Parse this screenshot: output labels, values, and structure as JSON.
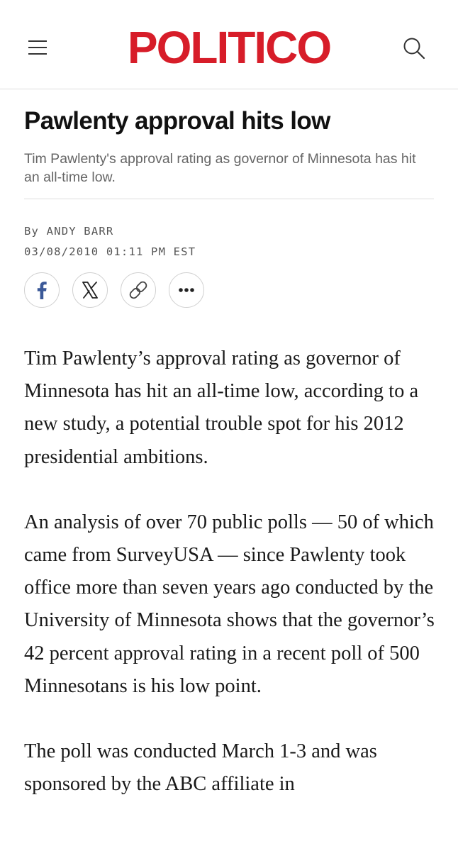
{
  "header": {
    "logo": "POLITICO",
    "menu_icon": "hamburger-menu-icon",
    "search_icon": "search-icon",
    "brand_color": "#d71d29"
  },
  "article": {
    "headline": "Pawlenty approval hits low",
    "dek": "Tim Pawlenty's approval rating as governor of Minnesota has hit an all-time low.",
    "byline_prefix": "By",
    "author": "ANDY BARR",
    "timestamp": "03/08/2010 01:11 PM EST",
    "share_buttons": [
      {
        "icon": "facebook-icon"
      },
      {
        "icon": "x-icon"
      },
      {
        "icon": "link-icon"
      },
      {
        "icon": "more-icon"
      }
    ],
    "paragraphs": [
      "Tim Pawlenty’s approval rating as governor of Minnesota has hit an all-time low, according to a new study, a potential trouble spot for his 2012 presidential ambitions.",
      "An analysis of over 70 public polls — 50 of which came from SurveyUSA — since Pawlenty took office more than seven years ago conducted by the University of Minnesota shows that the governor’s 42 percent approval rating in a recent poll of 500 Minnesotans is his low point.",
      "The poll was conducted March 1-3 and was sponsored by the ABC affiliate in"
    ]
  }
}
